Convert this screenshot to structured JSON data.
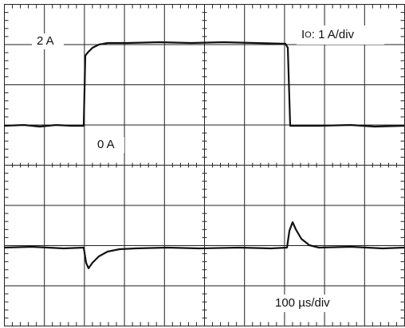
{
  "labels": {
    "high_level": "2 A",
    "low_level": "0 A",
    "current_symbol": "I",
    "current_subscript": "O",
    "current_scale": ": 1 A/div",
    "time_scale": "100 µs/div"
  }
}
